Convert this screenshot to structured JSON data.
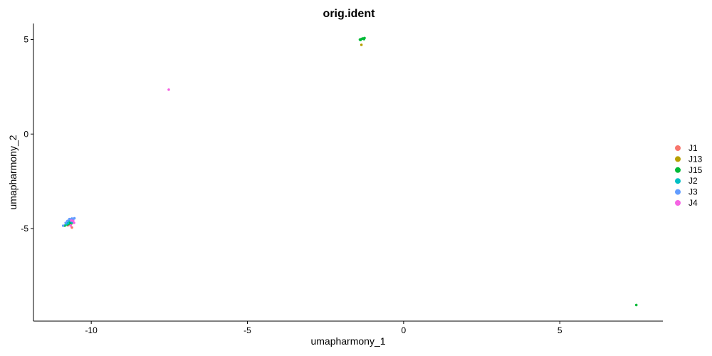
{
  "chart_data": {
    "type": "scatter",
    "title": "orig.ident",
    "xlabel": "umapharmony_1",
    "ylabel": "umapharmony_2",
    "xlim": [
      -11.85,
      8.3
    ],
    "ylim": [
      -9.9,
      5.85
    ],
    "xticks": [
      -10,
      -5,
      0,
      5
    ],
    "yticks": [
      -5,
      0,
      5
    ],
    "xtick_labels": [
      "-10",
      "-5",
      "0",
      "5"
    ],
    "ytick_labels": [
      "-5",
      "0",
      "5"
    ],
    "grid": false,
    "legend_position": "right",
    "series": [
      {
        "name": "J1",
        "color": "#F8766D",
        "points": [
          [
            -10.62,
            -4.95
          ],
          [
            -10.68,
            -4.78
          ],
          [
            -10.72,
            -4.7
          ],
          [
            -10.6,
            -4.62
          ],
          [
            -10.66,
            -4.55
          ],
          [
            -10.75,
            -4.83
          ]
        ]
      },
      {
        "name": "J13",
        "color": "#B79F00",
        "points": [
          [
            -1.35,
            4.72
          ],
          [
            -10.7,
            -4.66
          ],
          [
            -10.64,
            -4.74
          ]
        ]
      },
      {
        "name": "J15",
        "color": "#00BA38",
        "points": [
          [
            -1.4,
            5.0
          ],
          [
            -1.35,
            5.03
          ],
          [
            -1.3,
            5.06
          ],
          [
            -1.25,
            5.08
          ],
          [
            -1.38,
            4.98
          ],
          [
            -1.32,
            5.05
          ],
          [
            -1.27,
            5.02
          ],
          [
            7.45,
            -9.05
          ],
          [
            -10.85,
            -4.85
          ],
          [
            -10.78,
            -4.8
          ],
          [
            -10.72,
            -4.76
          ],
          [
            -10.7,
            -4.68
          ],
          [
            -10.66,
            -4.72
          ],
          [
            -10.8,
            -4.75
          ],
          [
            -10.74,
            -4.64
          ],
          [
            -10.62,
            -4.7
          ]
        ]
      },
      {
        "name": "J2",
        "color": "#00BFC4",
        "points": [
          [
            -10.8,
            -4.78
          ],
          [
            -10.74,
            -4.72
          ],
          [
            -10.68,
            -4.6
          ],
          [
            -10.62,
            -4.68
          ],
          [
            -10.76,
            -4.66
          ],
          [
            -10.7,
            -4.55
          ]
        ]
      },
      {
        "name": "J3",
        "color": "#619CFF",
        "points": [
          [
            -10.9,
            -4.85
          ],
          [
            -10.7,
            -4.5
          ],
          [
            -10.62,
            -4.47
          ],
          [
            -10.54,
            -4.46
          ],
          [
            -10.66,
            -4.52
          ],
          [
            -10.58,
            -4.55
          ],
          [
            -10.76,
            -4.6
          ],
          [
            -10.82,
            -4.7
          ]
        ]
      },
      {
        "name": "J4",
        "color": "#F564E3",
        "points": [
          [
            -7.52,
            2.35
          ],
          [
            -10.55,
            -4.7
          ],
          [
            -10.58,
            -4.6
          ],
          [
            -10.66,
            -4.84
          ],
          [
            -10.64,
            -4.58
          ]
        ]
      }
    ]
  }
}
